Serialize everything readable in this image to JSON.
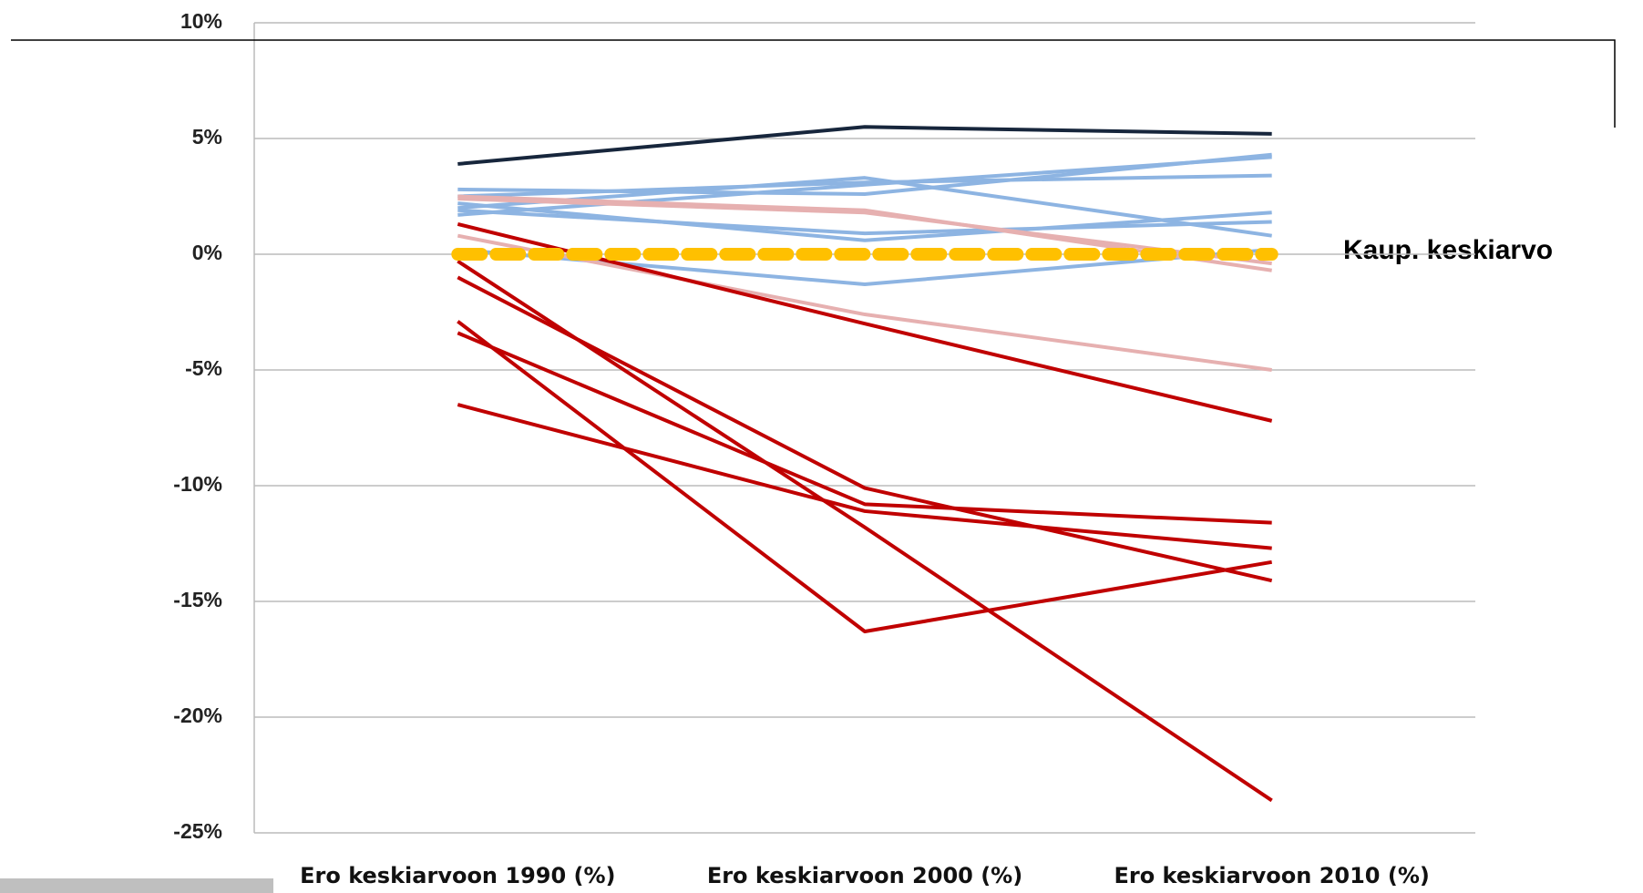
{
  "chart_data": {
    "type": "line",
    "categories": [
      "Ero keskiarvoon 1990 (%)",
      "Ero keskiarvoon 2000 (%)",
      "Ero keskiarvoon 2010 (%)"
    ],
    "ylim": [
      -25,
      10
    ],
    "yticks": [
      {
        "value": -25,
        "label": "-25%"
      },
      {
        "value": -20,
        "label": "-20%"
      },
      {
        "value": -15,
        "label": "-15%"
      },
      {
        "value": -10,
        "label": "-10%"
      },
      {
        "value": -5,
        "label": "-5%"
      },
      {
        "value": 0,
        "label": "0%"
      },
      {
        "value": 5,
        "label": "5%"
      },
      {
        "value": 10,
        "label": "10%"
      }
    ],
    "grid": true,
    "annotation": "Kaup. keskiarvo",
    "series": [
      {
        "color": "#8db4e2",
        "values": [
          2.8,
          2.6,
          4.3
        ]
      },
      {
        "color": "#8db4e2",
        "values": [
          2.0,
          3.3,
          0.8
        ]
      },
      {
        "color": "#8db4e2",
        "values": [
          1.7,
          3.0,
          4.2
        ]
      },
      {
        "color": "#8db4e2",
        "values": [
          2.2,
          0.6,
          1.8
        ]
      },
      {
        "color": "#8db4e2",
        "values": [
          1.9,
          0.9,
          1.4
        ]
      },
      {
        "color": "#8db4e2",
        "values": [
          0.2,
          -1.3,
          0.2
        ]
      },
      {
        "color": "#8db4e2",
        "values": [
          2.5,
          3.1,
          3.4
        ]
      },
      {
        "color": "#e6b0b0",
        "values": [
          2.5,
          1.9,
          -0.7
        ]
      },
      {
        "color": "#e6b0b0",
        "values": [
          0.8,
          -2.6,
          -5.0
        ]
      },
      {
        "color": "#e6b0b0",
        "values": [
          2.4,
          1.8,
          -0.4
        ]
      },
      {
        "color": "#c00000",
        "values": [
          1.3,
          -3.0,
          -7.2
        ]
      },
      {
        "color": "#c00000",
        "values": [
          -0.3,
          -11.8,
          -23.6
        ]
      },
      {
        "color": "#c00000",
        "values": [
          -1.0,
          -10.1,
          -14.1
        ]
      },
      {
        "color": "#c00000",
        "values": [
          -2.9,
          -16.3,
          -13.3
        ]
      },
      {
        "color": "#c00000",
        "values": [
          -3.4,
          -10.8,
          -11.6
        ]
      },
      {
        "color": "#c00000",
        "values": [
          -6.5,
          -11.1,
          -12.7
        ]
      },
      {
        "color": "#17263c",
        "values": [
          3.9,
          5.5,
          5.2
        ]
      },
      {
        "color": "#ffc000",
        "dashed": true,
        "values": [
          0,
          0,
          0
        ]
      }
    ]
  }
}
